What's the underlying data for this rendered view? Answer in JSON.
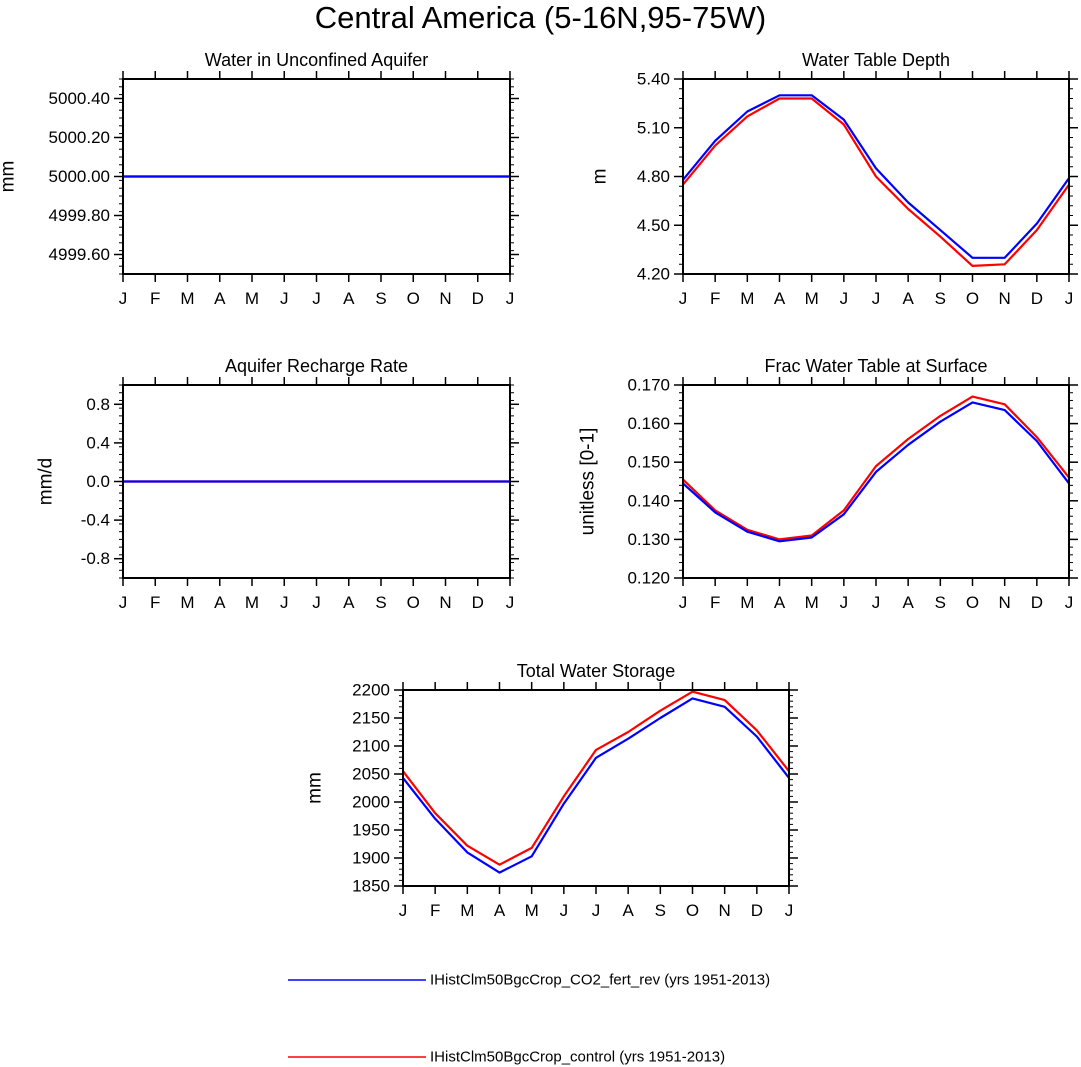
{
  "figure_title": "Central America (5-16N,95-75W)",
  "legend": [
    {
      "label": "IHistClm50BgcCrop_CO2_fert_rev (yrs 1951-2013)",
      "color": "#0000ff"
    },
    {
      "label": "IHistClm50BgcCrop_control (yrs 1951-2013)",
      "color": "#ff0000"
    }
  ],
  "chart_data": [
    {
      "type": "line",
      "title": "Water in Unconfined Aquifer",
      "ylabel": "mm",
      "categories": [
        "J",
        "F",
        "M",
        "A",
        "M",
        "J",
        "J",
        "A",
        "S",
        "O",
        "N",
        "D",
        "J"
      ],
      "ylim": [
        4999.5,
        5000.5
      ],
      "yticks": [
        4999.6,
        4999.8,
        5000.0,
        5000.2,
        5000.4
      ],
      "ytick_labels": [
        "4999.60",
        "4999.80",
        "5000.00",
        "5000.20",
        "5000.40"
      ],
      "series": [
        {
          "color": "#ff0000",
          "values": [
            5000,
            5000,
            5000,
            5000,
            5000,
            5000,
            5000,
            5000,
            5000,
            5000,
            5000,
            5000,
            5000
          ]
        },
        {
          "color": "#0000ff",
          "values": [
            5000,
            5000,
            5000,
            5000,
            5000,
            5000,
            5000,
            5000,
            5000,
            5000,
            5000,
            5000,
            5000
          ]
        }
      ]
    },
    {
      "type": "line",
      "title": "Water Table Depth",
      "ylabel": "m",
      "categories": [
        "J",
        "F",
        "M",
        "A",
        "M",
        "J",
        "J",
        "A",
        "S",
        "O",
        "N",
        "D",
        "J"
      ],
      "ylim": [
        4.2,
        5.4
      ],
      "yticks": [
        4.2,
        4.5,
        4.8,
        5.1,
        5.4
      ],
      "ytick_labels": [
        "4.20",
        "4.50",
        "4.80",
        "5.10",
        "5.40"
      ],
      "series": [
        {
          "color": "#ff0000",
          "values": [
            4.75,
            4.99,
            5.17,
            5.28,
            5.28,
            5.12,
            4.8,
            4.6,
            4.43,
            4.25,
            4.26,
            4.47,
            4.75
          ]
        },
        {
          "color": "#0000ff",
          "values": [
            4.78,
            5.02,
            5.2,
            5.3,
            5.3,
            5.15,
            4.85,
            4.64,
            4.47,
            4.3,
            4.3,
            4.51,
            4.79
          ]
        }
      ]
    },
    {
      "type": "line",
      "title": "Aquifer Recharge Rate",
      "ylabel": "mm/d",
      "categories": [
        "J",
        "F",
        "M",
        "A",
        "M",
        "J",
        "J",
        "A",
        "S",
        "O",
        "N",
        "D",
        "J"
      ],
      "ylim": [
        -1.0,
        1.0
      ],
      "yticks": [
        -0.8,
        -0.4,
        0.0,
        0.4,
        0.8
      ],
      "ytick_labels": [
        "-0.8",
        "-0.4",
        "0.0",
        "0.4",
        "0.8"
      ],
      "series": [
        {
          "color": "#ff0000",
          "values": [
            0,
            0,
            0,
            0,
            0,
            0,
            0,
            0,
            0,
            0,
            0,
            0,
            0
          ]
        },
        {
          "color": "#0000ff",
          "values": [
            0,
            0,
            0,
            0,
            0,
            0,
            0,
            0,
            0,
            0,
            0,
            0,
            0
          ]
        }
      ]
    },
    {
      "type": "line",
      "title": "Frac Water Table at Surface",
      "ylabel": "unitless [0-1]",
      "categories": [
        "J",
        "F",
        "M",
        "A",
        "M",
        "J",
        "J",
        "A",
        "S",
        "O",
        "N",
        "D",
        "J"
      ],
      "ylim": [
        0.12,
        0.17
      ],
      "yticks": [
        0.12,
        0.13,
        0.14,
        0.15,
        0.16,
        0.17
      ],
      "ytick_labels": [
        "0.120",
        "0.130",
        "0.140",
        "0.150",
        "0.160",
        "0.170"
      ],
      "series": [
        {
          "color": "#ff0000",
          "values": [
            0.1455,
            0.1375,
            0.1325,
            0.13,
            0.131,
            0.1375,
            0.149,
            0.156,
            0.162,
            0.167,
            0.165,
            0.1565,
            0.146
          ]
        },
        {
          "color": "#0000ff",
          "values": [
            0.1445,
            0.137,
            0.132,
            0.1295,
            0.1305,
            0.1365,
            0.1475,
            0.1545,
            0.1605,
            0.1655,
            0.1635,
            0.1555,
            0.1445
          ]
        }
      ]
    },
    {
      "type": "line",
      "title": "Total Water Storage",
      "ylabel": "mm",
      "categories": [
        "J",
        "F",
        "M",
        "A",
        "M",
        "J",
        "J",
        "A",
        "S",
        "O",
        "N",
        "D",
        "J"
      ],
      "ylim": [
        1850,
        2200
      ],
      "yticks": [
        1850,
        1900,
        1950,
        2000,
        2050,
        2100,
        2150,
        2200
      ],
      "ytick_labels": [
        "1850",
        "1900",
        "1950",
        "2000",
        "2050",
        "2100",
        "2150",
        "2200"
      ],
      "series": [
        {
          "color": "#ff0000",
          "values": [
            2055,
            1980,
            1922,
            1888,
            1918,
            2010,
            2093,
            2125,
            2163,
            2197,
            2182,
            2128,
            2055
          ]
        },
        {
          "color": "#0000ff",
          "values": [
            2043,
            1970,
            1910,
            1874,
            1903,
            1997,
            2079,
            2113,
            2150,
            2185,
            2170,
            2117,
            2043
          ]
        }
      ]
    }
  ]
}
